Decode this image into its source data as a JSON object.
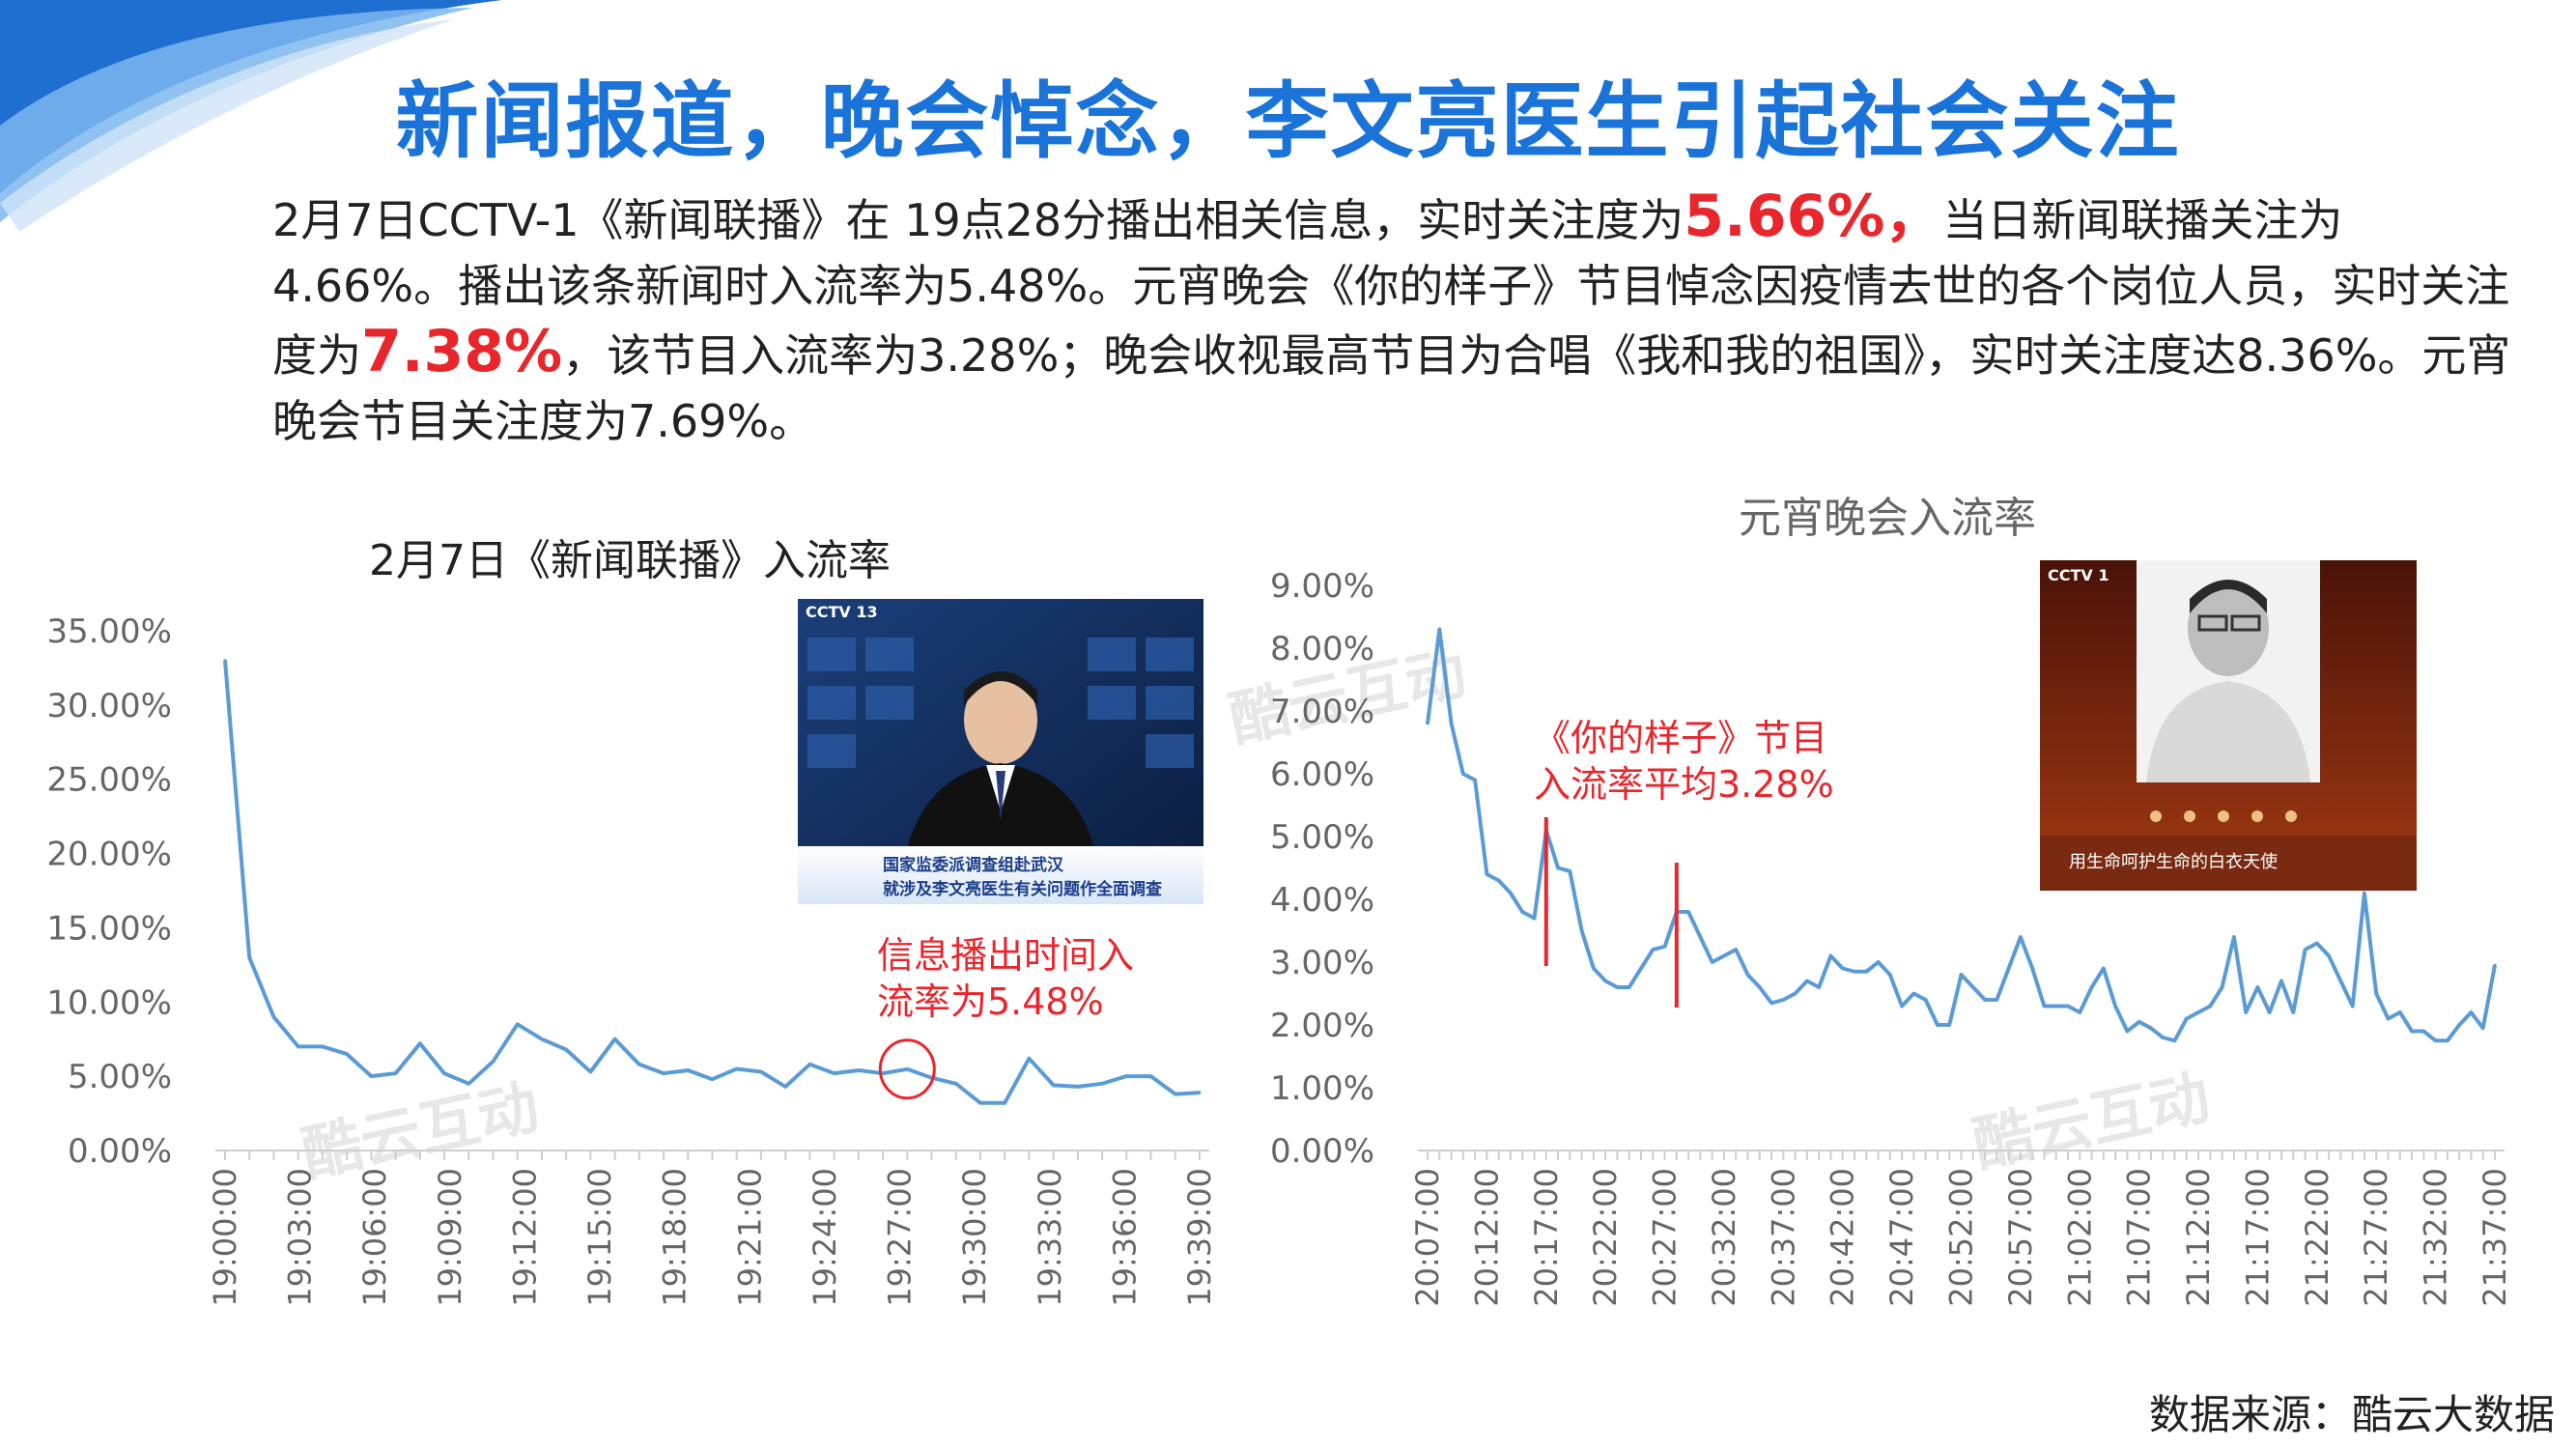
{
  "title": "新闻报道，晚会悼念，李文亮医生引起社会关注",
  "paragraph": {
    "p1": "2月7日CCTV-1《新闻联播》在 19点28分播出相关信息，实时关注度为",
    "h1": "5.66%，",
    "p2": "当日新闻联播关注为4.66%。播出该条新闻时入流率为5.48%。元宵晚会《你的样子》节目悼念因疫情去世的各个岗位人员，实时关注度为",
    "h2": "7.38%",
    "p3": "，该节目入流率为3.28%；晚会收视最高节目为合唱《我和我的祖国》，实时关注度达8.36%。元宵晚会节目关注度为7.69%。"
  },
  "colors": {
    "title": "#1a73d9",
    "highlight": "#e8262c",
    "line": "#5b9bd5",
    "annotation": "#e8262c"
  },
  "watermark": "酷云互动",
  "source": "数据来源：酷云大数据",
  "left_image": {
    "logo": "CCTV 13",
    "caption1": "国家监委派调查组赴武汉",
    "caption2": "就涉及李文亮医生有关问题作全面调查"
  },
  "right_image": {
    "logo": "CCTV 1",
    "caption": "用生命呵护生命的白衣天使"
  },
  "annotations": {
    "left": [
      "信息播出时间入",
      "流率为5.48%"
    ],
    "right": [
      "《你的样子》节目",
      "入流率平均3.28%"
    ]
  },
  "chart_data": [
    {
      "type": "line",
      "title": "2月7日《新闻联播》入流率",
      "ylim": [
        0,
        35
      ],
      "yticks": [
        "0.00%",
        "5.00%",
        "10.00%",
        "15.00%",
        "20.00%",
        "25.00%",
        "30.00%",
        "35.00%"
      ],
      "xticks": [
        "19:00:00",
        "19:03:00",
        "19:06:00",
        "19:09:00",
        "19:12:00",
        "19:15:00",
        "19:18:00",
        "19:21:00",
        "19:24:00",
        "19:27:00",
        "19:30:00",
        "19:33:00",
        "19:36:00",
        "19:39:00"
      ],
      "series": [
        {
          "values": [
            33.0,
            13.0,
            9.0,
            7.0,
            7.0,
            6.5,
            5.0,
            5.2,
            7.2,
            5.2,
            4.5,
            6.0,
            8.5,
            7.5,
            6.8,
            5.3,
            7.5,
            5.8,
            5.2,
            5.4,
            4.8,
            5.5,
            5.3,
            4.3,
            5.8,
            5.2,
            5.4,
            5.2,
            5.48,
            4.9,
            4.5,
            3.2,
            3.2,
            6.2,
            4.4,
            4.3,
            4.5,
            5.0,
            5.0,
            3.8,
            3.9
          ]
        }
      ]
    },
    {
      "type": "line",
      "title": "元宵晚会入流率",
      "ylim": [
        0,
        9
      ],
      "yticks": [
        "0.00%",
        "1.00%",
        "2.00%",
        "3.00%",
        "4.00%",
        "5.00%",
        "6.00%",
        "7.00%",
        "8.00%",
        "9.00%"
      ],
      "xticks": [
        "20:07:00",
        "20:12:00",
        "20:17:00",
        "20:22:00",
        "20:27:00",
        "20:32:00",
        "20:37:00",
        "20:42:00",
        "20:47:00",
        "20:52:00",
        "20:57:00",
        "21:02:00",
        "21:07:00",
        "21:12:00",
        "21:17:00",
        "21:22:00",
        "21:27:00",
        "21:32:00",
        "21:37:00"
      ],
      "highlight_range": [
        "20:17:00",
        "20:28:00"
      ],
      "series": [
        {
          "values": [
            6.8,
            8.3,
            6.8,
            6.0,
            5.9,
            4.4,
            4.3,
            4.1,
            3.8,
            3.7,
            5.1,
            4.5,
            4.45,
            3.5,
            2.9,
            2.7,
            2.6,
            2.6,
            2.9,
            3.2,
            3.25,
            3.8,
            3.8,
            3.4,
            3.0,
            3.1,
            3.2,
            2.8,
            2.6,
            2.35,
            2.4,
            2.5,
            2.7,
            2.6,
            3.1,
            2.9,
            2.85,
            2.85,
            3.0,
            2.8,
            2.3,
            2.5,
            2.4,
            2.0,
            2.0,
            2.8,
            2.6,
            2.4,
            2.4,
            2.9,
            3.4,
            2.9,
            2.3,
            2.3,
            2.3,
            2.2,
            2.6,
            2.9,
            2.3,
            1.9,
            2.05,
            1.95,
            1.8,
            1.75,
            2.1,
            2.2,
            2.3,
            2.6,
            3.4,
            2.2,
            2.6,
            2.2,
            2.7,
            2.2,
            3.2,
            3.3,
            3.1,
            2.7,
            2.3,
            4.1,
            2.5,
            2.1,
            2.2,
            1.9,
            1.9,
            1.75,
            1.75,
            2.0,
            2.2,
            1.95,
            2.95
          ]
        }
      ]
    }
  ]
}
